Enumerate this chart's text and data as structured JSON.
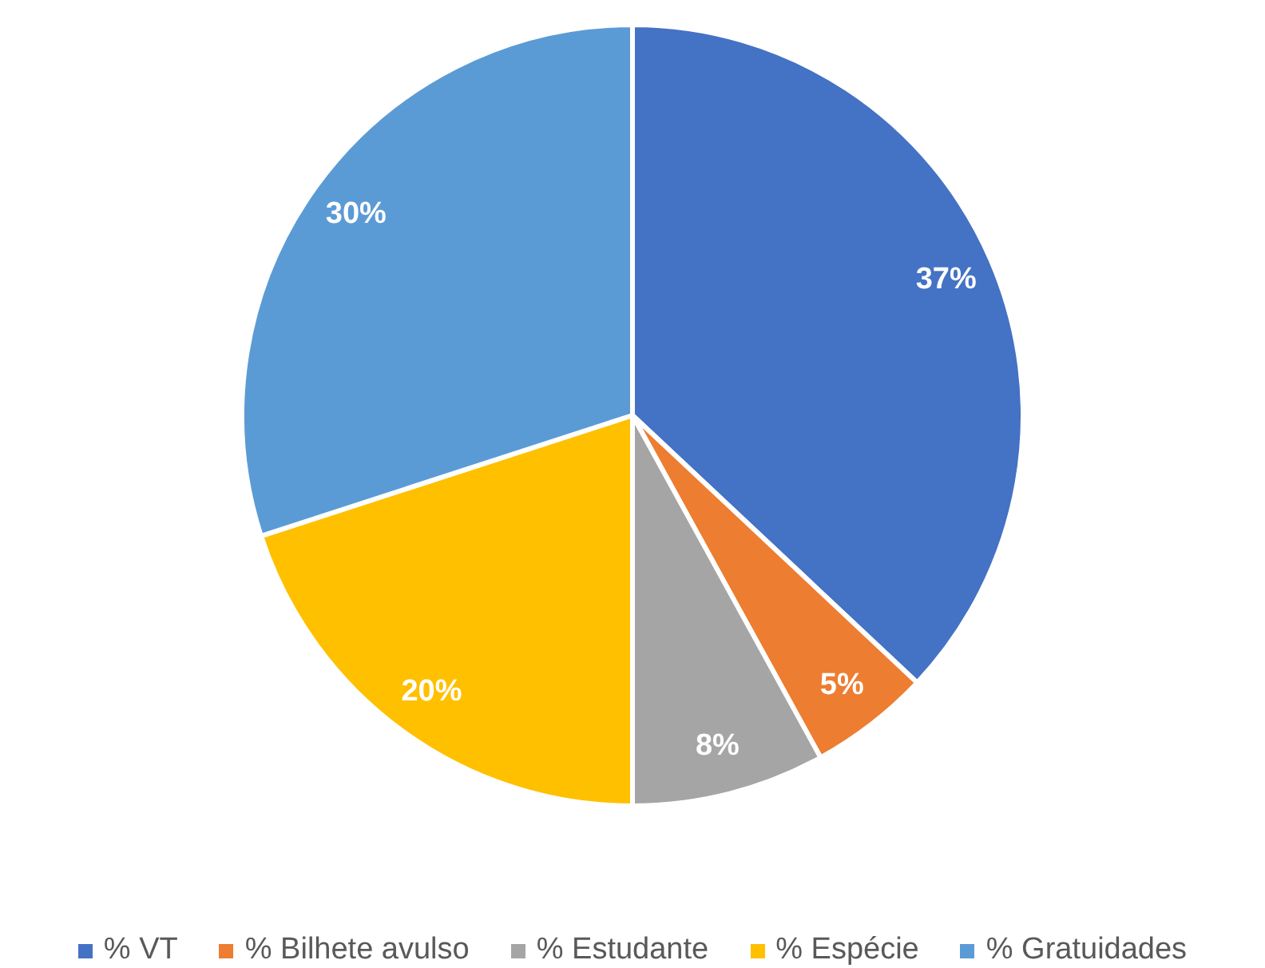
{
  "chart_data": {
    "type": "pie",
    "categories": [
      "% VT",
      "% Bilhete avulso",
      "% Estudante",
      "% Espécie",
      "% Gratuidades"
    ],
    "values": [
      37,
      5,
      8,
      20,
      30
    ],
    "colors": [
      "#4472c4",
      "#ed7d31",
      "#a5a5a5",
      "#ffc000",
      "#5b9bd5"
    ],
    "value_labels": [
      "37%",
      "5%",
      "8%",
      "20%",
      "30%"
    ],
    "legend": "bottom"
  }
}
